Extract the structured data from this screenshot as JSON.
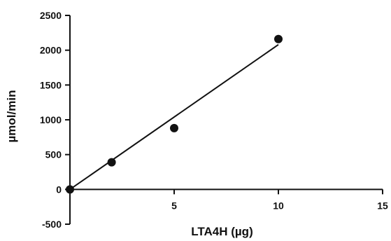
{
  "chart_data": {
    "type": "scatter",
    "xlabel": "LTA4H (µg)",
    "ylabel": "µmol/min",
    "xlim": [
      0,
      15
    ],
    "ylim": [
      -500,
      2500
    ],
    "x_ticks": [
      5,
      10,
      15
    ],
    "y_ticks": [
      -500,
      0,
      500,
      1000,
      1500,
      2000,
      2500
    ],
    "grid": false,
    "legend": "none",
    "series": [
      {
        "points": [
          {
            "x": 0,
            "y": 0
          },
          {
            "x": 2,
            "y": 390
          },
          {
            "x": 5,
            "y": 880
          },
          {
            "x": 10,
            "y": 2160
          }
        ],
        "color": "#111111",
        "marker": "circle"
      }
    ],
    "fit_line": {
      "x_start": 0,
      "y_start": 0,
      "x_end": 10,
      "y_end": 2080,
      "color": "#111111"
    }
  }
}
